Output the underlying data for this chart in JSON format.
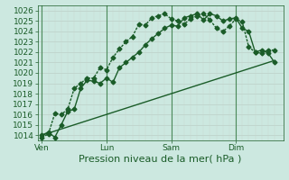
{
  "xlabel": "Pression niveau de la mer( hPa )",
  "ylim": [
    1013.5,
    1026.5
  ],
  "yticks": [
    1014,
    1015,
    1016,
    1017,
    1018,
    1019,
    1020,
    1021,
    1022,
    1023,
    1024,
    1025,
    1026
  ],
  "day_labels": [
    "Ven",
    "Lun",
    "Sam",
    "Dim"
  ],
  "day_positions": [
    0,
    30,
    60,
    90
  ],
  "bg_color": "#cce8e0",
  "line_color": "#1a5c28",
  "grid_color": "#b8d4c8",
  "vline_color": "#4a8a5a",
  "line1_x": [
    0,
    3,
    6,
    9,
    12,
    15,
    18,
    21,
    24,
    27,
    30,
    33,
    36,
    39,
    42,
    45,
    48,
    51,
    54,
    57,
    60,
    63,
    66,
    69,
    72,
    75,
    78,
    81,
    84,
    87,
    90,
    93,
    96,
    99,
    102,
    105,
    108
  ],
  "line1_y": [
    1014.0,
    1014.3,
    1013.8,
    1015.0,
    1016.3,
    1016.5,
    1018.5,
    1019.3,
    1019.2,
    1019.0,
    1019.5,
    1019.1,
    1020.5,
    1021.0,
    1021.5,
    1022.0,
    1022.7,
    1023.3,
    1023.8,
    1024.3,
    1024.6,
    1024.5,
    1025.3,
    1025.5,
    1025.7,
    1025.1,
    1025.7,
    1025.5,
    1025.0,
    1025.2,
    1025.3,
    1024.3,
    1024.0,
    1022.0,
    1022.2,
    1021.9,
    1021.0
  ],
  "line2_x": [
    0,
    3,
    6,
    9,
    12,
    15,
    18,
    21,
    24,
    27,
    30,
    33,
    36,
    39,
    42,
    45,
    48,
    51,
    54,
    57,
    60,
    63,
    66,
    69,
    72,
    75,
    78,
    81,
    84,
    87,
    90,
    93,
    96,
    99,
    102,
    105,
    108
  ],
  "line2_y": [
    1013.8,
    1014.1,
    1016.1,
    1016.0,
    1016.5,
    1018.5,
    1019.0,
    1019.5,
    1019.5,
    1020.5,
    1020.3,
    1021.5,
    1022.3,
    1023.0,
    1023.5,
    1024.7,
    1024.6,
    1025.3,
    1025.5,
    1025.7,
    1025.2,
    1025.0,
    1024.7,
    1025.2,
    1025.5,
    1025.7,
    1025.1,
    1024.3,
    1024.0,
    1024.5,
    1025.2,
    1024.9,
    1022.5,
    1022.0,
    1021.9,
    1022.2,
    1022.2
  ],
  "line3_x": [
    0,
    108
  ],
  "line3_y": [
    1014.0,
    1021.2
  ],
  "xlim": [
    -2,
    112
  ],
  "total_x": 108,
  "marker": "D",
  "markersize": 2.5,
  "linewidth": 1.0,
  "fontsize_label": 8,
  "fontsize_tick": 6.5
}
